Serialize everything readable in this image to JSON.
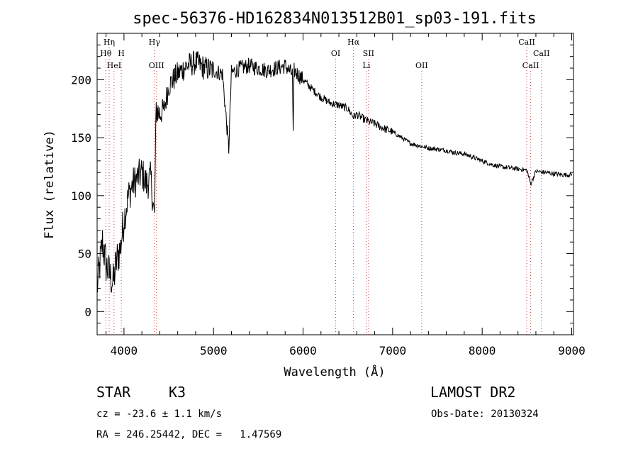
{
  "chart_data": {
    "type": "line",
    "title": "spec-56376-HD162834N013512B01_sp03-191.fits",
    "xlabel": "Wavelength (Å)",
    "ylabel": "Flux (relative)",
    "xlim": [
      3700,
      9020
    ],
    "ylim": [
      -20,
      240
    ],
    "xticks": [
      4000,
      5000,
      6000,
      7000,
      8000,
      9000
    ],
    "yticks": [
      0,
      50,
      100,
      150,
      200
    ],
    "grid": false,
    "series": [
      {
        "name": "spectrum",
        "x": [
          3700,
          3760,
          3800,
          3850,
          3880,
          3920,
          3960,
          4000,
          4050,
          4100,
          4150,
          4200,
          4250,
          4300,
          4340,
          4360,
          4400,
          4450,
          4500,
          4600,
          4700,
          4800,
          4900,
          5000,
          5100,
          5170,
          5200,
          5300,
          5400,
          5500,
          5600,
          5700,
          5800,
          5880,
          5890,
          5900,
          6000,
          6100,
          6200,
          6300,
          6400,
          6500,
          6563,
          6600,
          6700,
          6800,
          6900,
          7000,
          7100,
          7200,
          7300,
          7400,
          7500,
          7600,
          7700,
          7800,
          7900,
          8000,
          8100,
          8200,
          8300,
          8400,
          8500,
          8542,
          8600,
          8700,
          8800,
          8900,
          9000
        ],
        "y": [
          20,
          60,
          40,
          30,
          25,
          45,
          55,
          80,
          100,
          110,
          115,
          120,
          110,
          115,
          80,
          175,
          170,
          175,
          195,
          205,
          212,
          215,
          210,
          208,
          205,
          140,
          206,
          210,
          212,
          210,
          208,
          210,
          212,
          205,
          150,
          208,
          200,
          192,
          185,
          180,
          178,
          175,
          168,
          170,
          165,
          162,
          158,
          155,
          150,
          145,
          143,
          141,
          140,
          139,
          137,
          136,
          133,
          130,
          127,
          125,
          124,
          123,
          122,
          110,
          121,
          120,
          119,
          118,
          118
        ]
      }
    ],
    "lines": [
      {
        "label": "Hη",
        "x": 3835,
        "row": 1
      },
      {
        "label": "Hθ",
        "x": 3797,
        "row": 2
      },
      {
        "label": "H",
        "x": 3970,
        "row": 2
      },
      {
        "label": "HeI",
        "x": 3889,
        "row": 3
      },
      {
        "label": "Hγ",
        "x": 4340,
        "row": 1
      },
      {
        "label": "OIII",
        "x": 4363,
        "row": 3
      },
      {
        "label": "Hα",
        "x": 6563,
        "row": 1
      },
      {
        "label": "OI",
        "x": 6364,
        "row": 2
      },
      {
        "label": "SII",
        "x": 6731,
        "row": 2
      },
      {
        "label": "Li",
        "x": 6708,
        "row": 3
      },
      {
        "label": "OII",
        "x": 7325,
        "row": 3
      },
      {
        "label": "CaII",
        "x": 8498,
        "row": 1
      },
      {
        "label": "CaII",
        "x": 8662,
        "row": 2
      },
      {
        "label": "CaII",
        "x": 8542,
        "row": 3
      }
    ]
  },
  "info": {
    "object_class": "STAR",
    "subclass": "K3",
    "survey": "LAMOST DR2",
    "cz": "cz = -23.6 ± 1.1 km/s",
    "obs_date": "Obs-Date: 20130324",
    "coords": "RA = 246.25442, DEC =   1.47569"
  }
}
